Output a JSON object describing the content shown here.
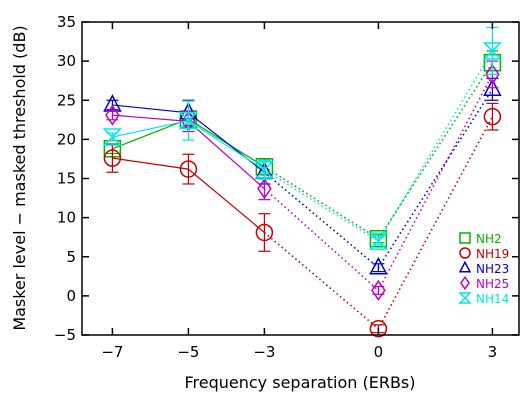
{
  "chart_data": {
    "type": "line",
    "xlabel": "Frequency separation (ERBs)",
    "ylabel": "Masker level − masked threshold (dB)",
    "xlim": [
      -7.8,
      3.7
    ],
    "ylim": [
      -5,
      35
    ],
    "x_ticks": [
      {
        "value": -7,
        "label": "−7"
      },
      {
        "value": -5,
        "label": "−5"
      },
      {
        "value": -3,
        "label": "−3"
      },
      {
        "value": 0,
        "label": "0"
      },
      {
        "value": 3,
        "label": "3"
      }
    ],
    "y_ticks": [
      {
        "value": -5,
        "label": "−5"
      },
      {
        "value": 0,
        "label": "0"
      },
      {
        "value": 5,
        "label": "5"
      },
      {
        "value": 10,
        "label": "10"
      },
      {
        "value": 15,
        "label": "15"
      },
      {
        "value": 20,
        "label": "20"
      },
      {
        "value": 25,
        "label": "25"
      },
      {
        "value": 30,
        "label": "30"
      },
      {
        "value": 35,
        "label": "35"
      }
    ],
    "grid": false,
    "legend_position": "right",
    "solid_x": [
      -7,
      -5,
      -3
    ],
    "dotted_x": [
      -3,
      0,
      3
    ],
    "series": [
      {
        "name": "NH2",
        "color": "#00b400",
        "marker": "square",
        "x": [
          -7,
          -5,
          -3,
          0,
          3
        ],
        "values": [
          18.8,
          22.6,
          16.5,
          7.3,
          29.8
        ],
        "errors": [
          0.6,
          1.0,
          1.0,
          0.5,
          1.5
        ]
      },
      {
        "name": "NH19",
        "color": "#c80000",
        "marker": "circle",
        "x": [
          -7,
          -5,
          -3,
          0,
          3
        ],
        "values": [
          17.6,
          16.2,
          8.1,
          -4.2,
          22.9
        ],
        "errors": [
          1.8,
          1.9,
          2.4,
          0.5,
          1.7
        ]
      },
      {
        "name": "NH23",
        "color": "#0000c8",
        "marker": "triangle",
        "x": [
          -7,
          -5,
          -3,
          0,
          3
        ],
        "values": [
          24.4,
          23.4,
          15.8,
          3.6,
          26.4
        ],
        "errors": [
          0.6,
          1.6,
          1.5,
          0.5,
          1.4
        ]
      },
      {
        "name": "NH25",
        "color": "#c000c8",
        "marker": "diamond",
        "x": [
          -7,
          -5,
          -3,
          0,
          3
        ],
        "values": [
          23.1,
          22.3,
          13.7,
          0.7,
          28.3
        ],
        "errors": [
          0.6,
          1.3,
          1.4,
          0.5,
          1.7
        ]
      },
      {
        "name": "NH14",
        "color": "#00e8e8",
        "marker": "hourglass",
        "x": [
          -7,
          -5,
          -3,
          0,
          3
        ],
        "values": [
          20.3,
          22.4,
          16.1,
          7.0,
          31.3
        ],
        "errors": [
          0.5,
          2.5,
          1.2,
          0.5,
          3.0
        ]
      }
    ]
  }
}
